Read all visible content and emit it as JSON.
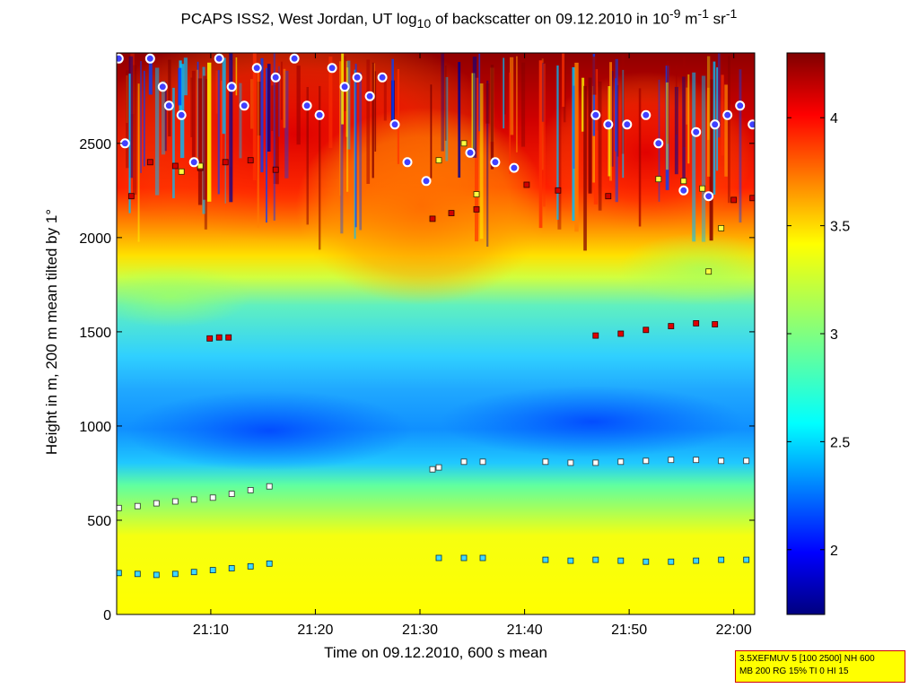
{
  "chart_data": [
    {
      "type": "heatmap",
      "title_parts": {
        "pre": "PCAPS ISS2, West Jordan, UT log",
        "sub": "10",
        "mid": " of backscatter on 09.12.2010 in 10",
        "sup1": "-9",
        "mid2": " m",
        "sup2": "-1",
        "mid3": " sr",
        "sup3": "-1"
      },
      "xlabel": "Time on 09.12.2010, 600 s mean",
      "ylabel": "Height in m, 200 m mean tilted by 1°",
      "xlim": [
        21.0167,
        22.0333
      ],
      "ylim": [
        0,
        2980
      ],
      "x_ticks": [
        {
          "value": 21.1667,
          "label": "21:10"
        },
        {
          "value": 21.3333,
          "label": "21:20"
        },
        {
          "value": 21.5,
          "label": "21:30"
        },
        {
          "value": 21.6667,
          "label": "21:40"
        },
        {
          "value": 21.8333,
          "label": "21:50"
        },
        {
          "value": 22.0,
          "label": "22:00"
        }
      ],
      "y_ticks": [
        0,
        500,
        1000,
        1500,
        2000,
        2500
      ],
      "colorbar": {
        "range": [
          1.7,
          4.3
        ],
        "ticks": [
          2,
          2.5,
          3,
          3.5,
          4
        ],
        "tick_labels": [
          "2",
          "2.5",
          "3",
          "3.5",
          "4"
        ],
        "colormap": "jet"
      },
      "colors": {
        "dark_red": "#800000",
        "red": "#ff2000",
        "orange": "#ff8c00",
        "yellow": "#ffff00",
        "green": "#80ff80",
        "cyan": "#40d0ff",
        "blue": "#0060ff",
        "dark_blue": "#000090"
      },
      "layers": [
        {
          "name": "low-yellow-layer",
          "y_range": [
            0,
            450
          ],
          "value": 3.4
        },
        {
          "name": "green-transition",
          "y_range": [
            450,
            720
          ],
          "value": 3.1
        },
        {
          "name": "blue-band",
          "y_range": [
            720,
            1450
          ],
          "value": 2.6
        },
        {
          "name": "cyan-green-transition",
          "y_range": [
            1450,
            1850
          ],
          "value": 3.0
        },
        {
          "name": "elevated-aerosol-layer",
          "y_range": [
            1850,
            2980
          ],
          "value": 3.9
        }
      ],
      "series": [
        {
          "marker": "cyan-square",
          "points": [
            [
              21.02,
              220
            ],
            [
              21.05,
              215
            ],
            [
              21.08,
              210
            ],
            [
              21.11,
              215
            ],
            [
              21.14,
              225
            ],
            [
              21.17,
              235
            ],
            [
              21.2,
              245
            ],
            [
              21.23,
              255
            ],
            [
              21.26,
              270
            ],
            [
              21.53,
              300
            ],
            [
              21.57,
              300
            ],
            [
              21.6,
              300
            ],
            [
              21.7,
              290
            ],
            [
              21.74,
              285
            ],
            [
              21.78,
              290
            ],
            [
              21.82,
              285
            ],
            [
              21.86,
              280
            ],
            [
              21.9,
              280
            ],
            [
              21.94,
              285
            ],
            [
              21.98,
              290
            ],
            [
              22.02,
              290
            ]
          ]
        },
        {
          "marker": "white-square",
          "points": [
            [
              21.02,
              565
            ],
            [
              21.05,
              575
            ],
            [
              21.08,
              590
            ],
            [
              21.11,
              600
            ],
            [
              21.14,
              610
            ],
            [
              21.17,
              620
            ],
            [
              21.2,
              640
            ],
            [
              21.23,
              660
            ],
            [
              21.26,
              680
            ],
            [
              21.52,
              770
            ],
            [
              21.53,
              780
            ],
            [
              21.57,
              810
            ],
            [
              21.6,
              810
            ],
            [
              21.7,
              810
            ],
            [
              21.74,
              805
            ],
            [
              21.78,
              805
            ],
            [
              21.82,
              810
            ],
            [
              21.86,
              815
            ],
            [
              21.9,
              820
            ],
            [
              21.94,
              820
            ],
            [
              21.98,
              815
            ],
            [
              22.02,
              815
            ]
          ]
        },
        {
          "marker": "red-square",
          "points": [
            [
              21.165,
              1465
            ],
            [
              21.18,
              1470
            ],
            [
              21.195,
              1470
            ],
            [
              21.78,
              1480
            ],
            [
              21.82,
              1490
            ],
            [
              21.86,
              1510
            ],
            [
              21.9,
              1530
            ],
            [
              21.94,
              1545
            ],
            [
              21.97,
              1540
            ]
          ]
        },
        {
          "marker": "red-square-upper",
          "points": [
            [
              21.04,
              2220
            ],
            [
              21.07,
              2400
            ],
            [
              21.11,
              2380
            ],
            [
              21.15,
              2370
            ],
            [
              21.19,
              2400
            ],
            [
              21.23,
              2410
            ],
            [
              21.27,
              2360
            ],
            [
              21.52,
              2100
            ],
            [
              21.55,
              2130
            ],
            [
              21.59,
              2150
            ],
            [
              21.67,
              2280
            ],
            [
              21.72,
              2250
            ],
            [
              21.8,
              2220
            ],
            [
              22.0,
              2200
            ],
            [
              22.03,
              2210
            ]
          ]
        },
        {
          "marker": "yellow-square",
          "points": [
            [
              21.12,
              2350
            ],
            [
              21.15,
              2380
            ],
            [
              21.53,
              2410
            ],
            [
              21.57,
              2500
            ],
            [
              21.59,
              2230
            ],
            [
              21.88,
              2310
            ],
            [
              21.92,
              2300
            ],
            [
              21.95,
              2260
            ],
            [
              21.98,
              2050
            ],
            [
              21.96,
              1820
            ]
          ]
        },
        {
          "marker": "blue-white-circle",
          "points": [
            [
              21.02,
              2950
            ],
            [
              21.03,
              2500
            ],
            [
              21.07,
              2950
            ],
            [
              21.09,
              2800
            ],
            [
              21.1,
              2700
            ],
            [
              21.12,
              2650
            ],
            [
              21.14,
              2400
            ],
            [
              21.18,
              2950
            ],
            [
              21.2,
              2800
            ],
            [
              21.22,
              2700
            ],
            [
              21.24,
              2900
            ],
            [
              21.27,
              2850
            ],
            [
              21.3,
              2950
            ],
            [
              21.32,
              2700
            ],
            [
              21.34,
              2650
            ],
            [
              21.36,
              2900
            ],
            [
              21.38,
              2800
            ],
            [
              21.4,
              2850
            ],
            [
              21.42,
              2750
            ],
            [
              21.44,
              2850
            ],
            [
              21.46,
              2600
            ],
            [
              21.48,
              2400
            ],
            [
              21.51,
              2300
            ],
            [
              21.58,
              2450
            ],
            [
              21.62,
              2400
            ],
            [
              21.65,
              2370
            ],
            [
              21.78,
              2650
            ],
            [
              21.8,
              2600
            ],
            [
              21.83,
              2600
            ],
            [
              21.86,
              2650
            ],
            [
              21.88,
              2500
            ],
            [
              21.92,
              2250
            ],
            [
              21.96,
              2220
            ],
            [
              21.99,
              2650
            ],
            [
              22.01,
              2700
            ],
            [
              22.03,
              2600
            ],
            [
              22.05,
              2580
            ],
            [
              21.94,
              2560
            ],
            [
              21.97,
              2600
            ]
          ]
        }
      ]
    }
  ],
  "info_box": {
    "line1": "3.5XEFMUV 5 [100 2500] NH 600",
    "line2": "MB 200 RG 15% TI 0 HI 15"
  }
}
